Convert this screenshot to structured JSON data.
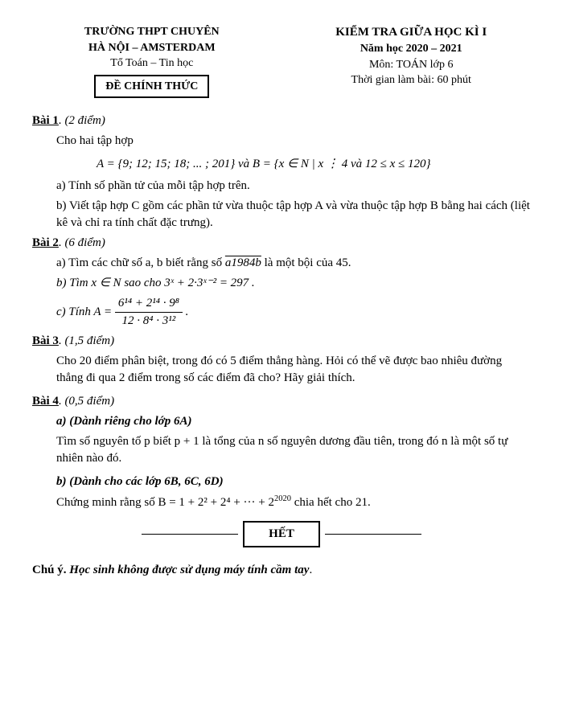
{
  "header": {
    "left": {
      "line1": "TRƯỜNG THPT CHUYÊN",
      "line2": "HÀ NỘI – AMSTERDAM",
      "line3": "Tổ Toán – Tin học",
      "official": "ĐỀ CHÍNH THỨC"
    },
    "right": {
      "title": "KIỂM TRA GIỮA HỌC KÌ I",
      "year": "Năm học 2020 – 2021",
      "subject": "Môn: TOÁN lớp 6",
      "time": "Thời gian làm bài: 60 phút"
    }
  },
  "bai1": {
    "title": "Bài 1",
    "score": ". (2 điểm)",
    "intro": "Cho hai tập hợp",
    "formula": "A = {9; 12; 15; 18; ... ; 201}  và  B = {x ∈ N | x ⋮ 4 và 12 ≤ x ≤ 120}",
    "a": "a) Tính số phần tử của mỗi tập hợp trên.",
    "b": "b) Viết tập hợp C gồm các phần tử vừa thuộc tập hợp A và vừa thuộc tập hợp B bằng hai cách (liệt kê và chỉ ra tính chất đặc trưng)."
  },
  "bai2": {
    "title": "Bài 2",
    "score": ". (6 điểm)",
    "a_pre": "a) Tìm các chữ số a, b biết rằng số ",
    "a_over": "a1984b",
    "a_post": " là một bội của 45.",
    "b": "b) Tìm  x ∈ N  sao cho  3ˣ + 2·3ˣ⁻² = 297 .",
    "c_pre": "c) Tính  A = ",
    "c_num": "6¹⁴ + 2¹⁴ · 9⁸",
    "c_den": "12 · 8⁴ · 3¹²",
    "c_post": " ."
  },
  "bai3": {
    "title": "Bài 3",
    "score": ". (1,5 điểm)",
    "text": "Cho 20 điểm phân biệt, trong đó có 5 điểm thẳng hàng. Hỏi có thể vẽ được bao nhiêu đường thẳng đi qua 2 điểm trong số các điểm đã cho? Hãy giải thích."
  },
  "bai4": {
    "title": "Bài 4",
    "score": ". (0,5 điểm)",
    "a_label": "a) (Dành riêng cho lớp 6A)",
    "a_text": "Tìm số nguyên tố p biết  p + 1 là tổng của n số nguyên dương đầu tiên, trong đó n là một số tự nhiên nào đó.",
    "b_label": "b) (Dành cho các lớp 6B, 6C, 6D)",
    "b_text_pre": "Chứng minh rằng số  B = 1 + 2² + 2⁴ + ··· + 2",
    "b_exp": "2020",
    "b_text_post": "  chia hết cho 21."
  },
  "het": "HẾT",
  "note_label": "Chú ý. ",
  "note_text": "Học sinh không được sử dụng máy tính cầm tay"
}
